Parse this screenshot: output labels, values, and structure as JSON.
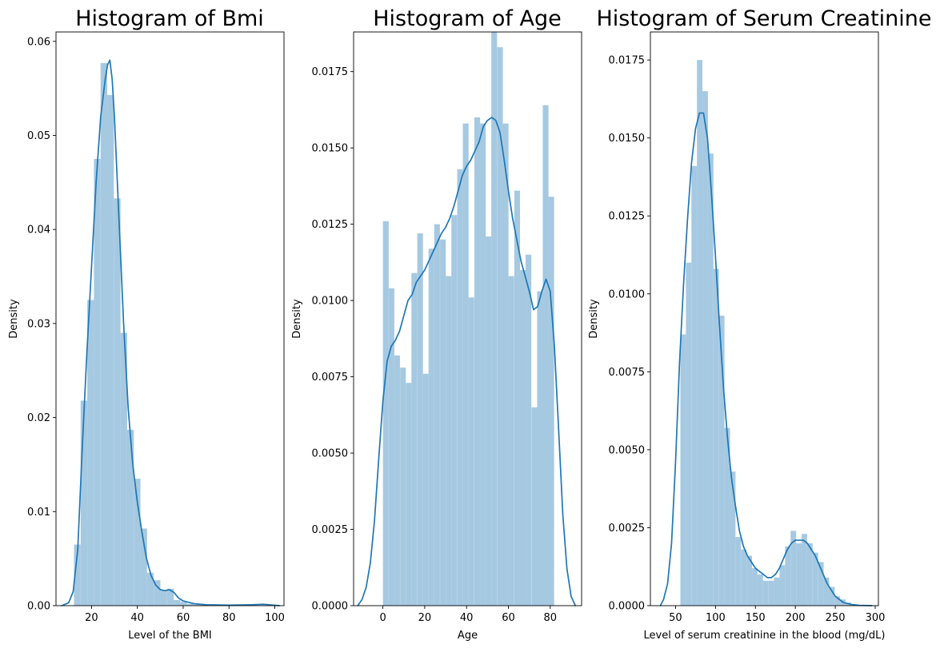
{
  "chart_data": [
    {
      "type": "bar",
      "title": "Histogram of Bmi",
      "xlabel": "Level of the BMI",
      "ylabel": "Density",
      "xlim": [
        4.5,
        104
      ],
      "ylim": [
        0,
        0.061
      ],
      "xticks": [
        20,
        40,
        60,
        80,
        100
      ],
      "yticks": [
        0.0,
        0.01,
        0.02,
        0.03,
        0.04,
        0.05,
        0.06
      ],
      "ytick_labels": [
        "0.00",
        "0.01",
        "0.02",
        "0.03",
        "0.04",
        "0.05",
        "0.06"
      ],
      "bin_width": 2.9,
      "bins": [
        {
          "x": 13.8,
          "y": 0.0065
        },
        {
          "x": 16.7,
          "y": 0.0218
        },
        {
          "x": 19.6,
          "y": 0.0325
        },
        {
          "x": 22.5,
          "y": 0.0475
        },
        {
          "x": 25.4,
          "y": 0.0577
        },
        {
          "x": 28.3,
          "y": 0.0543
        },
        {
          "x": 31.2,
          "y": 0.0433
        },
        {
          "x": 34.1,
          "y": 0.029
        },
        {
          "x": 37.0,
          "y": 0.0187
        },
        {
          "x": 39.9,
          "y": 0.0135
        },
        {
          "x": 42.8,
          "y": 0.0082
        },
        {
          "x": 45.7,
          "y": 0.0035
        },
        {
          "x": 48.6,
          "y": 0.0027
        },
        {
          "x": 51.5,
          "y": 0.0016
        },
        {
          "x": 54.4,
          "y": 0.0018
        },
        {
          "x": 57.3,
          "y": 0.0006
        },
        {
          "x": 60.2,
          "y": 0.0004
        },
        {
          "x": 63.1,
          "y": 0.0002
        },
        {
          "x": 66.0,
          "y": 0.0001
        },
        {
          "x": 68.9,
          "y": 0.0001
        }
      ],
      "kde": [
        [
          7,
          0.0
        ],
        [
          10,
          0.0003
        ],
        [
          12,
          0.0015
        ],
        [
          14,
          0.006
        ],
        [
          16,
          0.017
        ],
        [
          18,
          0.027
        ],
        [
          20,
          0.036
        ],
        [
          22,
          0.045
        ],
        [
          24,
          0.052
        ],
        [
          26,
          0.056
        ],
        [
          27,
          0.0575
        ],
        [
          28,
          0.058
        ],
        [
          29,
          0.056
        ],
        [
          30,
          0.052
        ],
        [
          32,
          0.041
        ],
        [
          34,
          0.03
        ],
        [
          36,
          0.021
        ],
        [
          38,
          0.015
        ],
        [
          40,
          0.011
        ],
        [
          42,
          0.0078
        ],
        [
          44,
          0.005
        ],
        [
          46,
          0.0032
        ],
        [
          48,
          0.0022
        ],
        [
          50,
          0.0017
        ],
        [
          52,
          0.0016
        ],
        [
          54,
          0.0017
        ],
        [
          56,
          0.0014
        ],
        [
          58,
          0.0008
        ],
        [
          60,
          0.0005
        ],
        [
          65,
          0.0002
        ],
        [
          70,
          0.0001
        ],
        [
          80,
          5e-05
        ],
        [
          90,
          0.0001
        ],
        [
          95,
          0.00015
        ],
        [
          102,
          0.0
        ]
      ]
    },
    {
      "type": "bar",
      "title": "Histogram of Age",
      "xlabel": "Age",
      "ylabel": "Density",
      "xlim": [
        -14,
        95
      ],
      "ylim": [
        0,
        0.0188
      ],
      "xticks": [
        0,
        20,
        40,
        60,
        80
      ],
      "yticks": [
        0.0,
        0.0025,
        0.005,
        0.0075,
        0.01,
        0.0125,
        0.015,
        0.0175
      ],
      "ytick_labels": [
        "0.0000",
        "0.0025",
        "0.0050",
        "0.0075",
        "0.0100",
        "0.0125",
        "0.0150",
        "0.0175"
      ],
      "bin_width": 2.73,
      "bins": [
        {
          "x": 1.4,
          "y": 0.0126
        },
        {
          "x": 4.1,
          "y": 0.0104
        },
        {
          "x": 6.8,
          "y": 0.0082
        },
        {
          "x": 9.6,
          "y": 0.0078
        },
        {
          "x": 12.3,
          "y": 0.0073
        },
        {
          "x": 15.0,
          "y": 0.0109
        },
        {
          "x": 17.8,
          "y": 0.0122
        },
        {
          "x": 20.5,
          "y": 0.0076
        },
        {
          "x": 23.2,
          "y": 0.0117
        },
        {
          "x": 25.9,
          "y": 0.0125
        },
        {
          "x": 28.7,
          "y": 0.012
        },
        {
          "x": 31.4,
          "y": 0.0108
        },
        {
          "x": 34.1,
          "y": 0.0128
        },
        {
          "x": 36.9,
          "y": 0.0143
        },
        {
          "x": 39.6,
          "y": 0.0158
        },
        {
          "x": 42.3,
          "y": 0.0101
        },
        {
          "x": 45.1,
          "y": 0.016
        },
        {
          "x": 47.8,
          "y": 0.0158
        },
        {
          "x": 50.5,
          "y": 0.0121
        },
        {
          "x": 53.2,
          "y": 0.0188
        },
        {
          "x": 56.0,
          "y": 0.0183
        },
        {
          "x": 58.7,
          "y": 0.0158
        },
        {
          "x": 61.4,
          "y": 0.0108
        },
        {
          "x": 64.2,
          "y": 0.0136
        },
        {
          "x": 66.9,
          "y": 0.011
        },
        {
          "x": 69.6,
          "y": 0.0115
        },
        {
          "x": 72.4,
          "y": 0.0065
        },
        {
          "x": 75.1,
          "y": 0.0103
        },
        {
          "x": 77.8,
          "y": 0.0164
        },
        {
          "x": 80.5,
          "y": 0.0134
        }
      ],
      "kde": [
        [
          -12,
          0.0
        ],
        [
          -10,
          0.0002
        ],
        [
          -8,
          0.0006
        ],
        [
          -6,
          0.0014
        ],
        [
          -4,
          0.0028
        ],
        [
          -2,
          0.0048
        ],
        [
          0,
          0.0067
        ],
        [
          2,
          0.008
        ],
        [
          4,
          0.0085
        ],
        [
          6,
          0.0087
        ],
        [
          8,
          0.009
        ],
        [
          10,
          0.0095
        ],
        [
          12,
          0.01
        ],
        [
          14,
          0.0102
        ],
        [
          16,
          0.0106
        ],
        [
          18,
          0.0108
        ],
        [
          20,
          0.011
        ],
        [
          22,
          0.0113
        ],
        [
          24,
          0.0116
        ],
        [
          26,
          0.0119
        ],
        [
          28,
          0.0122
        ],
        [
          30,
          0.0124
        ],
        [
          32,
          0.0127
        ],
        [
          34,
          0.0131
        ],
        [
          36,
          0.0136
        ],
        [
          38,
          0.0141
        ],
        [
          40,
          0.0144
        ],
        [
          42,
          0.0146
        ],
        [
          44,
          0.0149
        ],
        [
          46,
          0.0152
        ],
        [
          48,
          0.0157
        ],
        [
          50,
          0.0159
        ],
        [
          52,
          0.016
        ],
        [
          54,
          0.0159
        ],
        [
          56,
          0.0155
        ],
        [
          58,
          0.0146
        ],
        [
          60,
          0.0136
        ],
        [
          62,
          0.0127
        ],
        [
          64,
          0.012
        ],
        [
          66,
          0.0113
        ],
        [
          68,
          0.0108
        ],
        [
          70,
          0.0103
        ],
        [
          72,
          0.0097
        ],
        [
          74,
          0.0098
        ],
        [
          76,
          0.0103
        ],
        [
          78,
          0.0107
        ],
        [
          80,
          0.0103
        ],
        [
          82,
          0.0085
        ],
        [
          84,
          0.0058
        ],
        [
          86,
          0.003
        ],
        [
          88,
          0.0012
        ],
        [
          90,
          0.0003
        ],
        [
          92,
          0.0
        ]
      ]
    },
    {
      "type": "bar",
      "title": "Histogram of Serum Creatinine",
      "xlabel": "Level of serum creatinine in the blood (mg/dL)",
      "ylabel": "Density",
      "xlim": [
        18.5,
        304
      ],
      "ylim": [
        0,
        0.0184
      ],
      "xticks": [
        50,
        100,
        150,
        200,
        250,
        300
      ],
      "yticks": [
        0.0,
        0.0025,
        0.005,
        0.0075,
        0.01,
        0.0125,
        0.015,
        0.0175
      ],
      "ytick_labels": [
        "0.0000",
        "0.0025",
        "0.0050",
        "0.0075",
        "0.0100",
        "0.0125",
        "0.0150",
        "0.0175"
      ],
      "bin_width": 6.9,
      "bins": [
        {
          "x": 59.5,
          "y": 0.0087
        },
        {
          "x": 66.4,
          "y": 0.011
        },
        {
          "x": 73.3,
          "y": 0.0141
        },
        {
          "x": 80.2,
          "y": 0.0175
        },
        {
          "x": 87.1,
          "y": 0.0165
        },
        {
          "x": 94.0,
          "y": 0.0145
        },
        {
          "x": 100.9,
          "y": 0.0108
        },
        {
          "x": 107.8,
          "y": 0.0093
        },
        {
          "x": 114.7,
          "y": 0.0057
        },
        {
          "x": 121.6,
          "y": 0.0043
        },
        {
          "x": 128.5,
          "y": 0.0022
        },
        {
          "x": 135.4,
          "y": 0.0018
        },
        {
          "x": 142.3,
          "y": 0.0016
        },
        {
          "x": 149.2,
          "y": 0.0012
        },
        {
          "x": 156.1,
          "y": 0.001
        },
        {
          "x": 163.0,
          "y": 0.0008
        },
        {
          "x": 169.9,
          "y": 0.0008
        },
        {
          "x": 176.8,
          "y": 0.0009
        },
        {
          "x": 183.7,
          "y": 0.0013
        },
        {
          "x": 190.6,
          "y": 0.0019
        },
        {
          "x": 197.5,
          "y": 0.0024
        },
        {
          "x": 204.4,
          "y": 0.002
        },
        {
          "x": 211.3,
          "y": 0.0023
        },
        {
          "x": 218.2,
          "y": 0.002
        },
        {
          "x": 225.1,
          "y": 0.0017
        },
        {
          "x": 232.0,
          "y": 0.0014
        },
        {
          "x": 238.9,
          "y": 0.0009
        },
        {
          "x": 245.8,
          "y": 0.0006
        },
        {
          "x": 252.7,
          "y": 0.0003
        },
        {
          "x": 259.6,
          "y": 0.0002
        },
        {
          "x": 266.5,
          "y": 0.0001
        }
      ],
      "kde": [
        [
          31,
          0.0
        ],
        [
          35,
          0.0002
        ],
        [
          40,
          0.0007
        ],
        [
          45,
          0.002
        ],
        [
          50,
          0.0046
        ],
        [
          55,
          0.0078
        ],
        [
          60,
          0.0103
        ],
        [
          65,
          0.0124
        ],
        [
          70,
          0.0142
        ],
        [
          75,
          0.0153
        ],
        [
          80,
          0.0158
        ],
        [
          85,
          0.0158
        ],
        [
          90,
          0.015
        ],
        [
          95,
          0.0132
        ],
        [
          100,
          0.0112
        ],
        [
          105,
          0.009
        ],
        [
          110,
          0.007
        ],
        [
          115,
          0.0054
        ],
        [
          120,
          0.0041
        ],
        [
          125,
          0.0032
        ],
        [
          130,
          0.0024
        ],
        [
          135,
          0.0019
        ],
        [
          140,
          0.0016
        ],
        [
          145,
          0.0014
        ],
        [
          150,
          0.0012
        ],
        [
          155,
          0.0011
        ],
        [
          160,
          0.001
        ],
        [
          165,
          0.0009
        ],
        [
          170,
          0.0009
        ],
        [
          175,
          0.001
        ],
        [
          180,
          0.0012
        ],
        [
          185,
          0.0015
        ],
        [
          190,
          0.0018
        ],
        [
          195,
          0.002
        ],
        [
          200,
          0.0021
        ],
        [
          205,
          0.0021
        ],
        [
          210,
          0.0021
        ],
        [
          215,
          0.002
        ],
        [
          220,
          0.0018
        ],
        [
          225,
          0.0016
        ],
        [
          230,
          0.0013
        ],
        [
          235,
          0.001
        ],
        [
          240,
          0.0007
        ],
        [
          245,
          0.0005
        ],
        [
          250,
          0.0003
        ],
        [
          260,
          0.0001
        ],
        [
          270,
          4e-05
        ],
        [
          280,
          1e-05
        ],
        [
          296,
          0.0
        ]
      ]
    }
  ],
  "colors": {
    "bar": "#a6c9e2",
    "line": "#1f77b4"
  }
}
